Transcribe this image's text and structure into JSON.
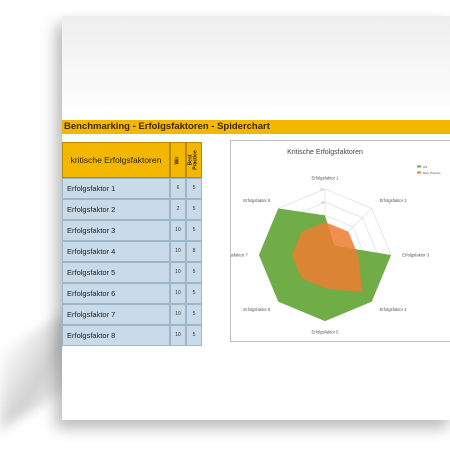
{
  "banner": {
    "title": "Benchmarking - Erfolgsfaktoren - Spiderchart"
  },
  "table": {
    "header": {
      "main": "kritische Erfolgsfaktoren",
      "col1": "Wir",
      "col2": "Best Practice"
    },
    "rows": [
      {
        "label": "Erfolgsfaktor 1",
        "wir": "6",
        "bp": "5"
      },
      {
        "label": "Erfolgsfaktor 2",
        "wir": "2",
        "bp": "5"
      },
      {
        "label": "Erfolgsfaktor 3",
        "wir": "10",
        "bp": "5"
      },
      {
        "label": "Erfolgsfaktor 4",
        "wir": "10",
        "bp": "8"
      },
      {
        "label": "Erfolgsfaktor 5",
        "wir": "10",
        "bp": "5"
      },
      {
        "label": "Erfolgsfaktor 6",
        "wir": "10",
        "bp": "5"
      },
      {
        "label": "Erfolgsfaktor 7",
        "wir": "10",
        "bp": "5"
      },
      {
        "label": "Erfolgsfaktor 8",
        "wir": "10",
        "bp": "5"
      }
    ]
  },
  "chart_data": {
    "type": "radar",
    "title": "Kritische Erfolgsfaktoren",
    "categories": [
      "Erfolgsfaktor 1",
      "Erfolgsfaktor 2",
      "Erfolgsfaktor 3",
      "Erfolgsfaktor 4",
      "Erfolgsfaktor 5",
      "Erfolgsfaktor 6",
      "Erfolgsfaktor 7",
      "Erfolgsfaktor 8"
    ],
    "rmax": 10,
    "series": [
      {
        "name": "Wir",
        "color": "#70ad47",
        "values": [
          6,
          2,
          10,
          10,
          10,
          10,
          10,
          10
        ]
      },
      {
        "name": "Best Practice",
        "color": "#ed7d31",
        "values": [
          5,
          5,
          5,
          8,
          5,
          5,
          5,
          5
        ]
      }
    ],
    "legend": "top-right",
    "grid": true
  }
}
